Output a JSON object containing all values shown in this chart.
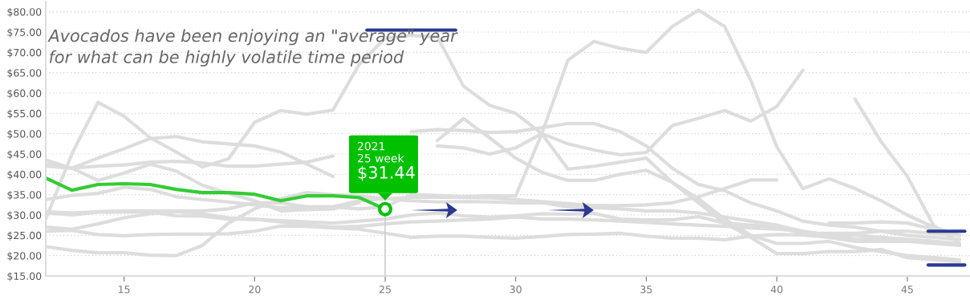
{
  "chart_data": {
    "type": "line",
    "x": [
      12,
      13,
      14,
      15,
      16,
      17,
      18,
      19,
      20,
      21,
      22,
      23,
      24,
      25,
      26,
      27,
      28,
      29,
      30,
      31,
      32,
      33,
      34,
      35,
      36,
      37,
      38,
      39,
      40,
      41,
      42,
      43,
      44,
      45,
      46,
      47
    ],
    "xlim": [
      12,
      47.4
    ],
    "xticks": [
      15,
      20,
      25,
      30,
      35,
      40,
      45
    ],
    "ylim": [
      15,
      82.5
    ],
    "yticks": [
      {
        "value": 15,
        "label": "$15.00"
      },
      {
        "value": 20,
        "label": "$20.00"
      },
      {
        "value": 25,
        "label": "$25.00"
      },
      {
        "value": 30,
        "label": "$30.00"
      },
      {
        "value": 35,
        "label": "$35.00"
      },
      {
        "value": 40,
        "label": "$40.00"
      },
      {
        "value": 45,
        "label": "$45.00"
      },
      {
        "value": 50,
        "label": "$50.00"
      },
      {
        "value": 55,
        "label": "$55.00"
      },
      {
        "value": 60,
        "label": "$60.00"
      },
      {
        "value": 65,
        "label": "$65.00"
      },
      {
        "value": 70,
        "label": "$70.00"
      },
      {
        "value": 75,
        "label": "$75.00"
      },
      {
        "value": 80,
        "label": "$80.00"
      }
    ],
    "grid": "y",
    "marker": "none",
    "line_style": "solid",
    "series": [
      {
        "color": "#dddddd",
        "values": [
          29,
          45,
          57.7,
          54.3,
          49,
          45.5,
          41.8,
          43.8,
          52.8,
          55.7,
          54.8,
          55.8,
          67,
          73.5,
          74.2,
          73.8,
          61.7,
          57,
          55,
          50,
          41.3,
          42,
          43,
          44,
          38,
          34,
          29,
          25,
          23,
          23,
          23.5,
          22,
          21,
          20,
          19.5,
          19
        ]
      },
      {
        "color": "#dddddd",
        "values": [
          30.8,
          30.5,
          30.8,
          31,
          31,
          31,
          31,
          31.5,
          33,
          33,
          32,
          32,
          31.5,
          32,
          35,
          34.8,
          34.5,
          34.7,
          34.7,
          50,
          68.1,
          72.7,
          71,
          70,
          76.4,
          80.4,
          76.4,
          63.2,
          46.8,
          36.5,
          38.9,
          36.5,
          33.5,
          30,
          27,
          25
        ]
      },
      {
        "color": "#dddddd",
        "values": [
          43.5,
          41.5,
          38.5,
          40.3,
          42.5,
          40.8,
          37.3,
          35.3,
          33.5,
          31,
          31.3,
          31.5,
          33,
          null,
          null,
          47,
          46.5,
          45,
          46.5,
          50,
          47.5,
          46,
          44.8,
          45.4,
          52,
          53.8,
          55.7,
          53.1,
          56.7,
          65.6,
          null,
          null,
          null,
          null,
          null,
          null
        ]
      },
      {
        "color": "#dddddd",
        "values": [
          42,
          41.5,
          42,
          42.3,
          43,
          43.2,
          42.8,
          42,
          42,
          42.5,
          43,
          44.5,
          null,
          null,
          null,
          48.3,
          53.7,
          49,
          44,
          40.5,
          38.5,
          38.5,
          40,
          41,
          38,
          33,
          28,
          24.5,
          20.5,
          20.5,
          21,
          21,
          21.5,
          19.5,
          19,
          18.5
        ]
      },
      {
        "color": "#dddddd",
        "values": [
          42.5,
          41.5,
          44,
          46.3,
          48.8,
          49.3,
          48,
          47.5,
          47,
          45.5,
          42.5,
          39.5,
          null,
          null,
          50.5,
          51,
          50.8,
          50.3,
          50.5,
          51.5,
          52.5,
          52.5,
          50.5,
          47,
          41.5,
          37.5,
          36,
          33,
          31,
          28.5,
          27.5,
          27,
          26,
          25,
          24.5,
          24
        ]
      },
      {
        "color": "#dddddd",
        "values": [
          null,
          null,
          null,
          null,
          null,
          null,
          null,
          null,
          null,
          null,
          null,
          null,
          null,
          null,
          null,
          null,
          null,
          null,
          null,
          null,
          null,
          null,
          null,
          null,
          null,
          null,
          null,
          null,
          null,
          null,
          null,
          58.5,
          48,
          39.5,
          27.5,
          23
        ]
      },
      {
        "color": "#dddddd",
        "values": [
          null,
          null,
          null,
          null,
          null,
          null,
          null,
          null,
          null,
          null,
          null,
          null,
          null,
          null,
          null,
          null,
          null,
          null,
          null,
          null,
          null,
          null,
          null,
          null,
          null,
          null,
          null,
          null,
          null,
          null,
          28,
          28,
          28.3,
          28,
          26.5,
          25
        ]
      },
      {
        "color": "#dddddd",
        "values": [
          33.8,
          34.8,
          35.3,
          36.8,
          36.3,
          34.5,
          33.8,
          33.2,
          32.5,
          31.8,
          32,
          32,
          33.5,
          34,
          34.3,
          34.4,
          34.3,
          34.2,
          33.8,
          33.3,
          32.8,
          32.3,
          32.3,
          32.5,
          33,
          34.5,
          36.5,
          38.6,
          38.6,
          null,
          null,
          null,
          null,
          null,
          null,
          null
        ]
      },
      {
        "color": "#dddddd",
        "values": [
          22.2,
          21.3,
          20.7,
          20.7,
          20.1,
          20,
          22.5,
          28,
          31.5,
          34,
          35.5,
          35,
          34.7,
          34,
          33.5,
          33.2,
          33.3,
          33.2,
          33,
          33,
          32,
          31.8,
          31.5,
          31,
          31,
          30.5,
          29.5,
          28.5,
          27.5,
          26,
          25,
          25,
          24.5,
          24,
          23.5,
          22.5
        ]
      },
      {
        "color": "#dddddd",
        "values": [
          26,
          26.2,
          25.2,
          24.9,
          25.2,
          25.3,
          25.3,
          25.4,
          26,
          27.3,
          27.2,
          26.8,
          26.5,
          25.5,
          24.5,
          24.8,
          24.8,
          24.5,
          24.3,
          24.7,
          25.2,
          25.3,
          25.5,
          24.8,
          24.3,
          24.3,
          23.9,
          24.8,
          25.2,
          25.1,
          24.5,
          23.5,
          23.5,
          23.5,
          23,
          22.5
        ]
      },
      {
        "color": "#dddddd",
        "values": [
          30.5,
          30,
          30.7,
          30.7,
          30.7,
          29.8,
          29.7,
          29,
          28.9,
          28.6,
          28.3,
          28,
          28.5,
          29,
          30,
          30.5,
          29.8,
          29.5,
          29.8,
          30.3,
          30.2,
          30.4,
          29,
          28.8,
          28.8,
          29.6,
          28,
          27.5,
          27,
          25.5,
          25.5,
          25.5,
          26,
          26,
          25.5,
          25
        ]
      },
      {
        "color": "#dddddd",
        "values": [
          27,
          26.5,
          27.8,
          29.3,
          30.3,
          30.8,
          30.3,
          29.3,
          29,
          28.3,
          27.5,
          27,
          27.2,
          27.8,
          28.3,
          28.5,
          28.8,
          29,
          29.5,
          29,
          29,
          28.8,
          28.5,
          28.2,
          27.8,
          27.5,
          27.2,
          26.8,
          26.5,
          26,
          25,
          24,
          24,
          23.8,
          23.5,
          23
        ]
      },
      {
        "color": "#33cc33",
        "values": [
          39.1,
          36.1,
          37.5,
          37.7,
          37.5,
          36.3,
          35.5,
          35.5,
          35.1,
          33.5,
          34.7,
          34.7,
          34.3,
          31.44,
          null,
          null,
          null,
          null,
          null,
          null,
          null,
          null,
          null,
          null,
          null,
          null,
          null,
          null,
          null,
          null,
          null,
          null,
          null,
          null,
          null,
          null
        ]
      },
      {
        "color": "#2b3990",
        "x": [
          24.3,
          27.7
        ],
        "values": [
          75.5,
          75.5
        ]
      },
      {
        "color": "#2b3990",
        "x": [
          45.8,
          47.2
        ],
        "values": [
          26,
          26
        ]
      },
      {
        "color": "#2b3990",
        "x": [
          45.8,
          47.2
        ],
        "values": [
          17.7,
          17.7
        ]
      }
    ],
    "annotations": [
      "Avocados have been enjoying an \"average\" year\nfor what can be highly volatile time period",
      {
        "text": "2021\n25 week\n$31.44",
        "x": 25,
        "y": 31.44
      }
    ]
  }
}
